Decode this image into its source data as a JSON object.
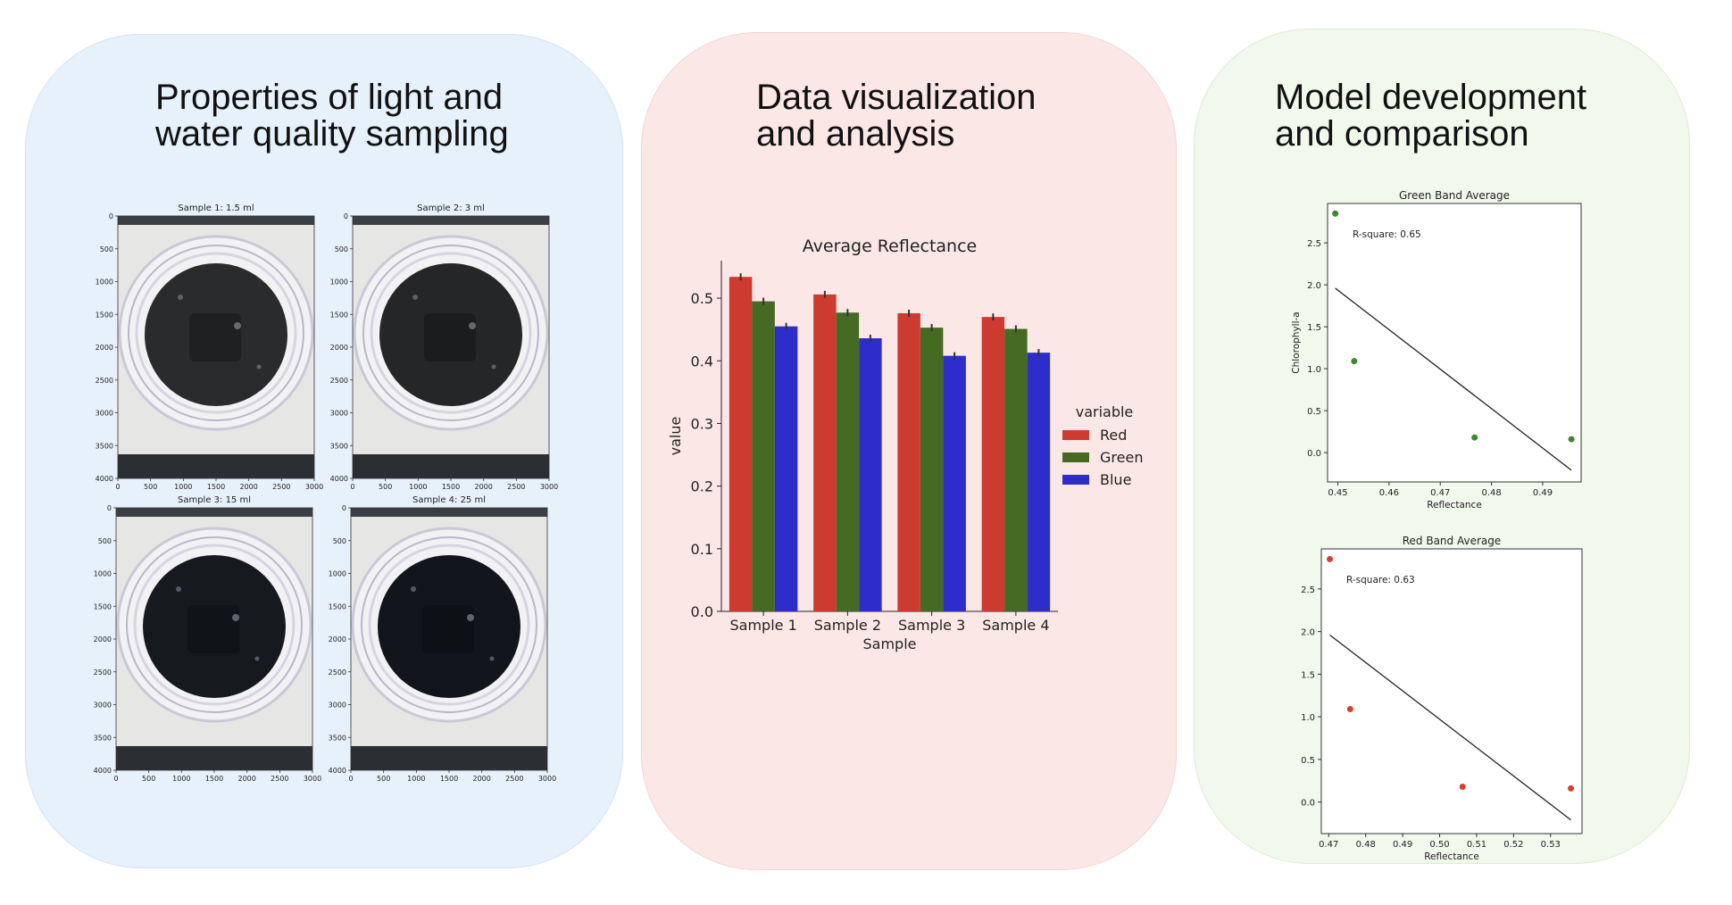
{
  "panels": [
    {
      "title_line1": "Properties of light and",
      "title_line2": "water quality sampling"
    },
    {
      "title_line1": "Data visualization",
      "title_line2": "and analysis"
    },
    {
      "title_line1": "Model development",
      "title_line2": "and comparison"
    }
  ],
  "samples": [
    {
      "title": "Sample 1: 1.5 ml",
      "shade": "#2a2b2c"
    },
    {
      "title": "Sample 2: 3 ml",
      "shade": "#252628"
    },
    {
      "title": "Sample 3: 15 ml",
      "shade": "#161a1f"
    },
    {
      "title": "Sample 4: 25 ml",
      "shade": "#12161c"
    }
  ],
  "sample_axes": {
    "x_ticks": [
      "0",
      "500",
      "1000",
      "1500",
      "2000",
      "2500",
      "3000"
    ],
    "y_ticks": [
      "0",
      "500",
      "1000",
      "1500",
      "2000",
      "2500",
      "3000",
      "3500",
      "4000"
    ]
  },
  "chart_data": [
    {
      "type": "bar",
      "title": "Average Reflectance",
      "xlabel": "Sample",
      "ylabel": "value",
      "categories": [
        "Sample 1",
        "Sample 2",
        "Sample 3",
        "Sample 4"
      ],
      "ylim": [
        0,
        0.56
      ],
      "yticks": [
        "0.0",
        "0.1",
        "0.2",
        "0.3",
        "0.4",
        "0.5"
      ],
      "legend_title": "variable",
      "legend_position": "right",
      "series": [
        {
          "name": "Red",
          "color": "#cd3a2f",
          "values": [
            0.534,
            0.506,
            0.476,
            0.47
          ]
        },
        {
          "name": "Green",
          "color": "#456a24",
          "values": [
            0.495,
            0.477,
            0.453,
            0.451
          ]
        },
        {
          "name": "Blue",
          "color": "#2d2dcc",
          "values": [
            0.455,
            0.436,
            0.408,
            0.413
          ]
        }
      ]
    },
    {
      "type": "scatter",
      "title": "Green Band Average",
      "xlabel": "Reflectance",
      "ylabel": "Chlorophyll-a",
      "annotation": "R-square: 0.65",
      "color": "#3a8a2a",
      "xlim": [
        0.448,
        0.4975
      ],
      "ylim": [
        -0.35,
        2.97
      ],
      "xticks": [
        "0.45",
        "0.46",
        "0.47",
        "0.48",
        "0.49"
      ],
      "yticks": [
        "0.0",
        "0.5",
        "1.0",
        "1.5",
        "2.0",
        "2.5"
      ],
      "points": [
        [
          0.4495,
          2.85
        ],
        [
          0.4532,
          1.09
        ],
        [
          0.4767,
          0.18
        ],
        [
          0.4956,
          0.16
        ]
      ],
      "fit_line": [
        [
          0.4495,
          1.96
        ],
        [
          0.4956,
          -0.21
        ]
      ]
    },
    {
      "type": "scatter",
      "title": "Red Band Average",
      "xlabel": "Reflectance",
      "ylabel": "",
      "annotation": "R-square: 0.63",
      "color": "#d6402e",
      "xlim": [
        0.468,
        0.5385
      ],
      "ylim": [
        -0.37,
        2.97
      ],
      "xticks": [
        "0.47",
        "0.48",
        "0.49",
        "0.50",
        "0.51",
        "0.52",
        "0.53"
      ],
      "yticks": [
        "0.0",
        "0.5",
        "1.0",
        "1.5",
        "2.0",
        "2.5"
      ],
      "points": [
        [
          0.4703,
          2.85
        ],
        [
          0.4758,
          1.09
        ],
        [
          0.5062,
          0.18
        ],
        [
          0.5355,
          0.16
        ]
      ],
      "fit_line": [
        [
          0.4703,
          1.96
        ],
        [
          0.5355,
          -0.21
        ]
      ]
    }
  ]
}
